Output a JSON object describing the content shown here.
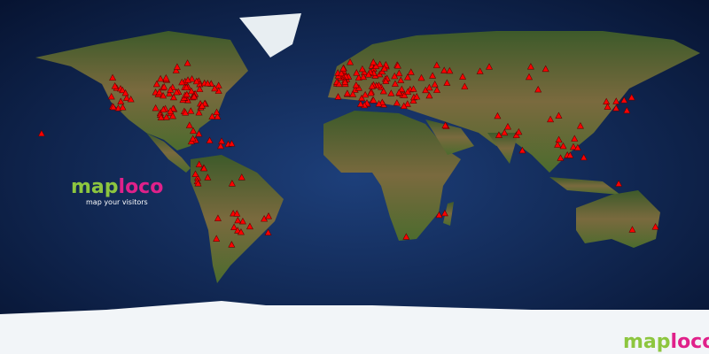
{
  "logo": {
    "word1": "map",
    "word2": "loco",
    "tagline": "map your visitors"
  },
  "footer_logo": {
    "word1": "map",
    "word2": "loco"
  }
}
